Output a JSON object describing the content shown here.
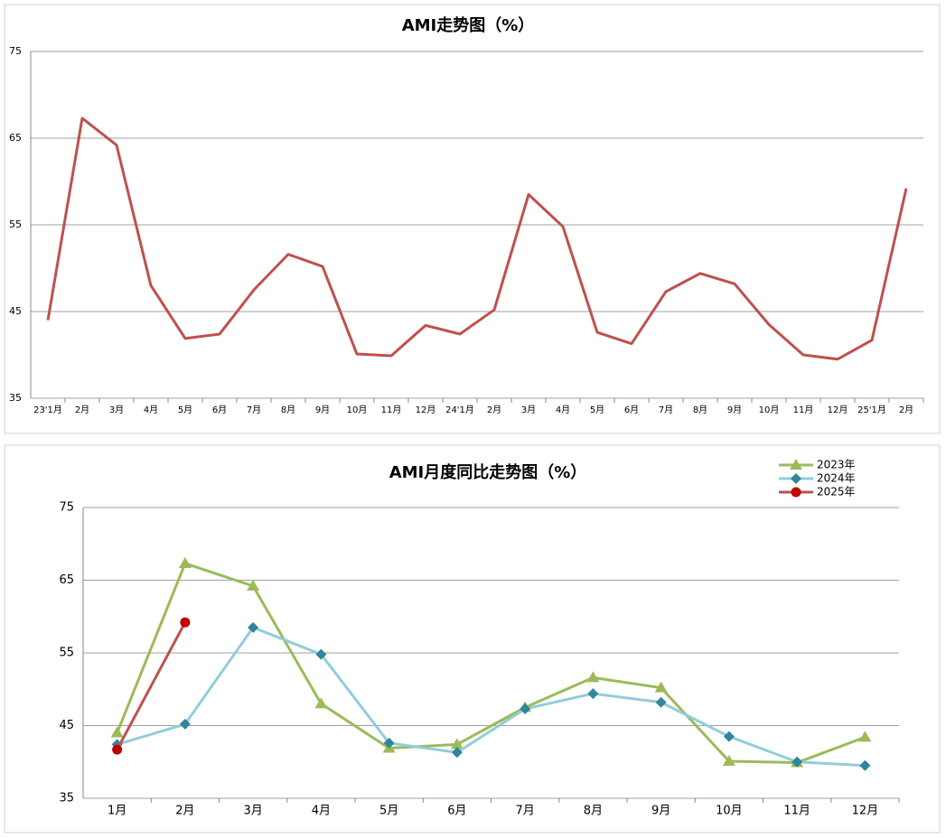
{
  "chart_data": [
    {
      "type": "line",
      "title": "AMI走势图（%）",
      "categories": [
        "23'1月",
        "2月",
        "3月",
        "4月",
        "5月",
        "6月",
        "7月",
        "8月",
        "9月",
        "10月",
        "11月",
        "12月",
        "24'1月",
        "2月",
        "3月",
        "4月",
        "5月",
        "6月",
        "7月",
        "8月",
        "9月",
        "10月",
        "11月",
        "12月",
        "25'1月",
        "2月"
      ],
      "values": [
        44.0,
        67.3,
        64.2,
        48.0,
        41.9,
        42.4,
        47.5,
        51.6,
        50.2,
        40.1,
        39.9,
        43.4,
        42.4,
        45.2,
        58.5,
        54.8,
        42.6,
        41.3,
        47.3,
        49.4,
        48.2,
        43.5,
        40.0,
        39.5,
        41.7,
        59.2
      ],
      "color": "#c0504d",
      "ylim": [
        35,
        75
      ],
      "yticks": [
        35,
        45,
        55,
        65,
        75
      ],
      "grid": true
    },
    {
      "type": "line",
      "title": "AMI月度同比走势图（%）",
      "categories": [
        "1月",
        "2月",
        "3月",
        "4月",
        "5月",
        "6月",
        "7月",
        "8月",
        "9月",
        "10月",
        "11月",
        "12月"
      ],
      "series": [
        {
          "name": "2023年",
          "color": "#9bbb59",
          "marker": "triangle",
          "marker_color": "#9bbb59",
          "values": [
            44.0,
            67.3,
            64.2,
            48.0,
            41.9,
            42.4,
            47.5,
            51.6,
            50.2,
            40.1,
            39.9,
            43.4
          ]
        },
        {
          "name": "2024年",
          "color": "#92cddc",
          "marker": "diamond",
          "marker_color": "#31859c",
          "values": [
            42.4,
            45.2,
            58.5,
            54.8,
            42.6,
            41.3,
            47.3,
            49.4,
            48.2,
            43.5,
            40.0,
            39.5
          ]
        },
        {
          "name": "2025年",
          "color": "#c0504d",
          "marker": "circle",
          "marker_color": "#c00000",
          "values": [
            41.7,
            59.2,
            null,
            null,
            null,
            null,
            null,
            null,
            null,
            null,
            null,
            null
          ]
        }
      ],
      "ylim": [
        35,
        75
      ],
      "yticks": [
        35,
        45,
        55,
        65,
        75
      ],
      "grid": true,
      "legend": "top-right"
    }
  ]
}
